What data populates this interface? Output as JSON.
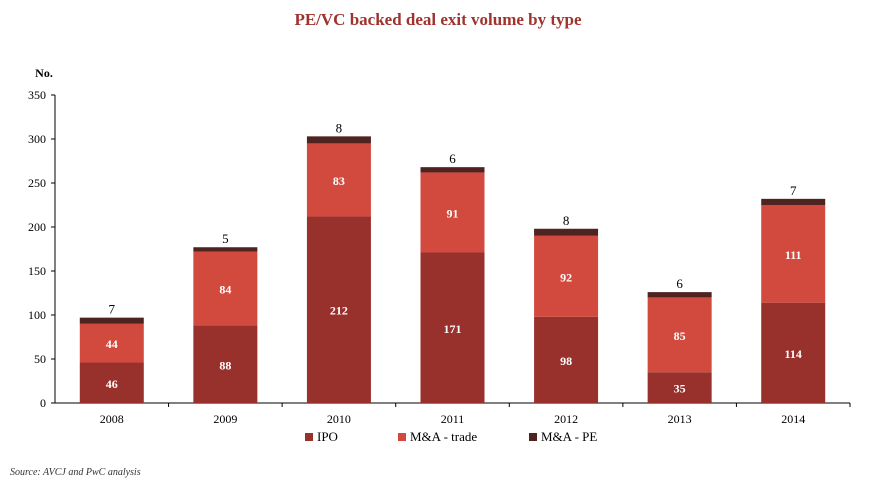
{
  "chart_data": {
    "type": "bar",
    "stacked": true,
    "title": "PE/VC backed deal exit volume by type",
    "ylabel": "No.",
    "xlabel": "",
    "ylim": [
      0,
      350
    ],
    "yticks": [
      0,
      50,
      100,
      150,
      200,
      250,
      300,
      350
    ],
    "categories": [
      "2008",
      "2009",
      "2010",
      "2011",
      "2012",
      "2013",
      "2014"
    ],
    "series": [
      {
        "name": "IPO",
        "values": [
          46,
          88,
          212,
          171,
          98,
          35,
          114
        ],
        "color": "#98302c"
      },
      {
        "name": "M&A - trade",
        "values": [
          44,
          84,
          83,
          91,
          92,
          85,
          111
        ],
        "color": "#d24a3d"
      },
      {
        "name": "M&A - PE",
        "values": [
          7,
          5,
          8,
          6,
          8,
          6,
          7
        ],
        "color": "#4e2320"
      }
    ],
    "legend_position": "bottom",
    "grid": false
  },
  "source": "Source: AVCJ and PwC analysis"
}
